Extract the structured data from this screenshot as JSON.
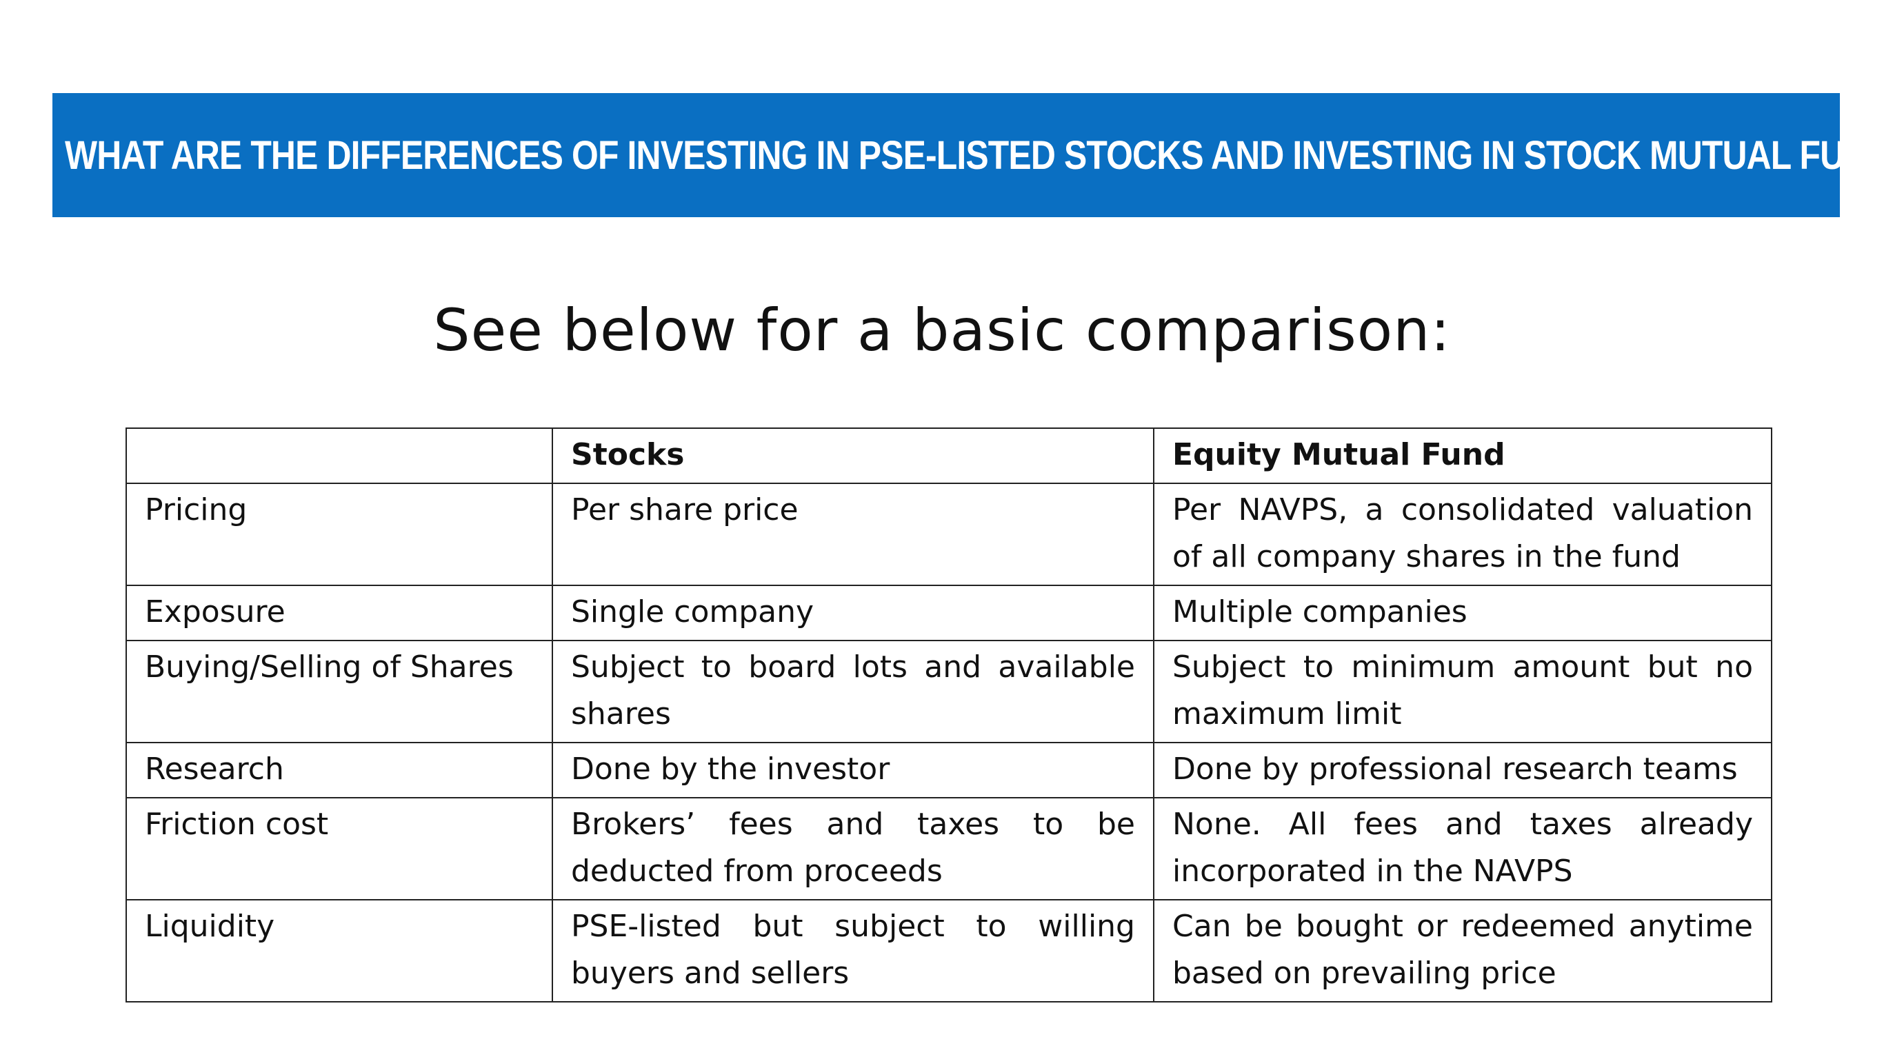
{
  "banner": {
    "title": "What are the differences of investing in PSE-listed stocks and investing in stock mutual funds?"
  },
  "subtitle": "See below for a basic comparison:",
  "table": {
    "headers": [
      "",
      "Stocks",
      "Equity Mutual Fund"
    ],
    "rows": [
      [
        "Pricing",
        "Per share price",
        "Per NAVPS, a consolidated valuation of all company shares in the fund"
      ],
      [
        "Exposure",
        "Single company",
        "Multiple companies"
      ],
      [
        "Buying/Selling of Shares",
        "Subject to board lots and available shares",
        "Subject to minimum amount but no maximum limit"
      ],
      [
        "Research",
        "Done by the investor",
        "Done by professional research teams"
      ],
      [
        "Friction cost",
        "Brokers’ fees and taxes to be deducted from proceeds",
        "None. All fees and taxes already incorporated in the NAVPS"
      ],
      [
        "Liquidity",
        "PSE-listed but subject to willing buyers and sellers",
        "Can be bought or redeemed anytime based on prevailing price"
      ]
    ]
  },
  "colors": {
    "banner_bg": "#0a6fc2",
    "banner_text": "#ffffff",
    "border": "#222222"
  }
}
